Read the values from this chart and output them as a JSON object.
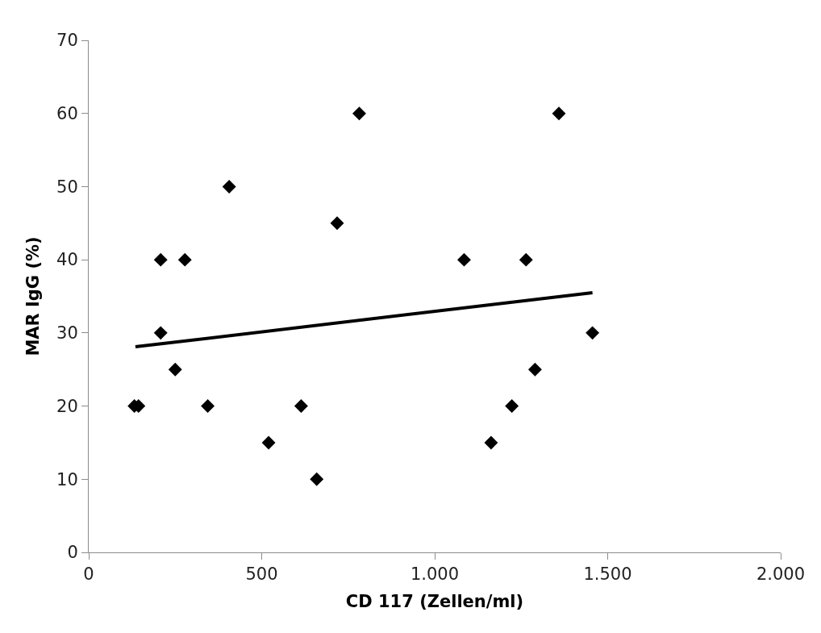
{
  "chart_data": {
    "type": "scatter",
    "xlabel": "CD 117 (Zellen/ml)",
    "ylabel": "MAR IgG (%)",
    "xlim": [
      0,
      2000
    ],
    "xticks": [
      {
        "value": 0,
        "label": "0"
      },
      {
        "value": 500,
        "label": "500"
      },
      {
        "value": 1000,
        "label": "1.000"
      },
      {
        "value": 1500,
        "label": "1.500"
      },
      {
        "value": 2000,
        "label": "2.000"
      }
    ],
    "ylim": [
      0,
      70
    ],
    "yticks": [
      0,
      10,
      20,
      30,
      40,
      50,
      60,
      70
    ],
    "series": [
      {
        "color": "#000000",
        "marker": "diamond",
        "x": [
          132,
          144,
          208,
          208,
          250,
          278,
          344,
          406,
          520,
          614,
          659,
          718,
          782,
          1085,
          1163,
          1223,
          1264,
          1290,
          1359,
          1456
        ],
        "values": [
          20,
          20,
          40,
          30,
          25,
          40,
          20,
          50,
          15,
          20,
          10,
          45,
          60,
          40,
          15,
          20,
          40,
          25,
          60,
          30
        ]
      },
      {
        "type": "line",
        "color": "#000000",
        "line_style": "solid",
        "x": [
          135,
          1456
        ],
        "values": [
          28.1,
          35.5
        ]
      }
    ]
  }
}
